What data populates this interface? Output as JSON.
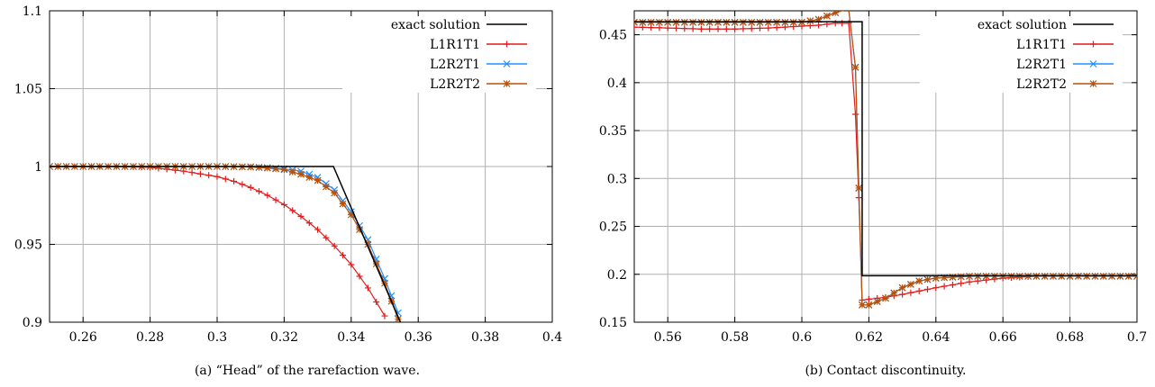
{
  "chart_data": [
    {
      "type": "line",
      "caption": "(a) “Head” of the rarefaction wave.",
      "xlim": [
        0.25,
        0.4
      ],
      "ylim": [
        0.9,
        1.1
      ],
      "xticks": [
        "0.26",
        "0.28",
        "0.3",
        "0.32",
        "0.34",
        "0.36",
        "0.38",
        "0.4"
      ],
      "xtick_values": [
        0.26,
        0.28,
        0.3,
        0.32,
        0.34,
        0.36,
        0.38,
        0.4
      ],
      "yticks": [
        "0.9",
        "0.95",
        "1",
        "1.05",
        "1.1"
      ],
      "ytick_values": [
        0.9,
        0.95,
        1.0,
        1.05,
        1.1
      ],
      "grid": true,
      "legend_position": "top-right",
      "series": [
        {
          "name": "exact solution",
          "color": "#000000",
          "marker": "none",
          "x": [
            0.25,
            0.3347,
            0.3547
          ],
          "y": [
            1.0,
            1.0,
            0.9
          ]
        },
        {
          "name": "L1R1T1",
          "color": "#e41a1c",
          "marker": "plus",
          "x": [
            0.25,
            0.26,
            0.27,
            0.28,
            0.29,
            0.3,
            0.305,
            0.31,
            0.315,
            0.32,
            0.325,
            0.33,
            0.335,
            0.34,
            0.345,
            0.35
          ],
          "y": [
            1.0,
            1.0,
            1.0,
            0.9995,
            0.997,
            0.9935,
            0.9905,
            0.9865,
            0.9815,
            0.9755,
            0.968,
            0.9595,
            0.949,
            0.937,
            0.922,
            0.904
          ]
        },
        {
          "name": "L2R2T1",
          "color": "#1e90ff",
          "marker": "cross",
          "x": [
            0.25,
            0.28,
            0.3,
            0.31,
            0.315,
            0.32,
            0.325,
            0.33,
            0.335,
            0.34,
            0.345,
            0.35,
            0.354
          ],
          "y": [
            1.0,
            1.0,
            1.0,
            0.9998,
            0.9993,
            0.9985,
            0.997,
            0.993,
            0.985,
            0.971,
            0.953,
            0.928,
            0.906
          ]
        },
        {
          "name": "L2R2T2",
          "color": "#b8520a",
          "marker": "star",
          "x": [
            0.25,
            0.28,
            0.3,
            0.31,
            0.315,
            0.32,
            0.325,
            0.33,
            0.335,
            0.34,
            0.345,
            0.35,
            0.354
          ],
          "y": [
            1.0,
            1.0,
            1.0,
            0.9997,
            0.999,
            0.998,
            0.995,
            0.991,
            0.983,
            0.969,
            0.95,
            0.925,
            0.902
          ]
        }
      ],
      "legend": [
        "exact solution",
        "L1R1T1",
        "L2R2T1",
        "L2R2T2"
      ]
    },
    {
      "type": "line",
      "caption": "(b) Contact discontinuity.",
      "xlim": [
        0.55,
        0.7
      ],
      "ylim": [
        0.15,
        0.475
      ],
      "xticks": [
        "0.56",
        "0.58",
        "0.6",
        "0.62",
        "0.64",
        "0.66",
        "0.68",
        "0.7"
      ],
      "xtick_values": [
        0.56,
        0.58,
        0.6,
        0.62,
        0.64,
        0.66,
        0.68,
        0.7
      ],
      "yticks": [
        "0.15",
        "0.2",
        "0.25",
        "0.3",
        "0.35",
        "0.4",
        "0.45"
      ],
      "ytick_values": [
        0.15,
        0.2,
        0.25,
        0.3,
        0.35,
        0.4,
        0.45
      ],
      "grid": true,
      "legend_position": "top-right",
      "series": [
        {
          "name": "exact solution",
          "color": "#000000",
          "marker": "none",
          "x": [
            0.55,
            0.618,
            0.618,
            0.7
          ],
          "y": [
            0.4636,
            0.4636,
            0.1985,
            0.1985
          ]
        },
        {
          "name": "L1R1T1",
          "color": "#e41a1c",
          "marker": "plus",
          "x": [
            0.55,
            0.56,
            0.57,
            0.58,
            0.59,
            0.6,
            0.605,
            0.61,
            0.614,
            0.616,
            0.617,
            0.618,
            0.62,
            0.625,
            0.63,
            0.64,
            0.65,
            0.66,
            0.67,
            0.68,
            0.7
          ],
          "y": [
            0.458,
            0.457,
            0.456,
            0.456,
            0.457,
            0.459,
            0.46,
            0.462,
            0.462,
            0.367,
            0.28,
            0.173,
            0.174,
            0.176,
            0.179,
            0.186,
            0.192,
            0.196,
            0.198,
            0.198,
            0.198
          ]
        },
        {
          "name": "L2R2T1",
          "color": "#1e90ff",
          "marker": "cross",
          "x": [
            0.55,
            0.56,
            0.58,
            0.6,
            0.605,
            0.61,
            0.613,
            0.614,
            0.616,
            0.617,
            0.618,
            0.62,
            0.625,
            0.63,
            0.635,
            0.64,
            0.65,
            0.66,
            0.7
          ],
          "y": [
            0.463,
            0.463,
            0.463,
            0.463,
            0.466,
            0.473,
            0.476,
            0.476,
            0.416,
            0.29,
            0.168,
            0.168,
            0.175,
            0.186,
            0.193,
            0.196,
            0.198,
            0.198,
            0.198
          ]
        },
        {
          "name": "L2R2T2",
          "color": "#b8520a",
          "marker": "star",
          "x": [
            0.55,
            0.56,
            0.58,
            0.6,
            0.605,
            0.61,
            0.613,
            0.614,
            0.616,
            0.617,
            0.618,
            0.62,
            0.625,
            0.63,
            0.635,
            0.64,
            0.65,
            0.66,
            0.7
          ],
          "y": [
            0.463,
            0.463,
            0.463,
            0.463,
            0.466,
            0.473,
            0.476,
            0.476,
            0.416,
            0.29,
            0.168,
            0.168,
            0.175,
            0.186,
            0.193,
            0.196,
            0.198,
            0.198,
            0.198
          ]
        }
      ],
      "legend": [
        "exact solution",
        "L1R1T1",
        "L2R2T1",
        "L2R2T2"
      ]
    }
  ]
}
